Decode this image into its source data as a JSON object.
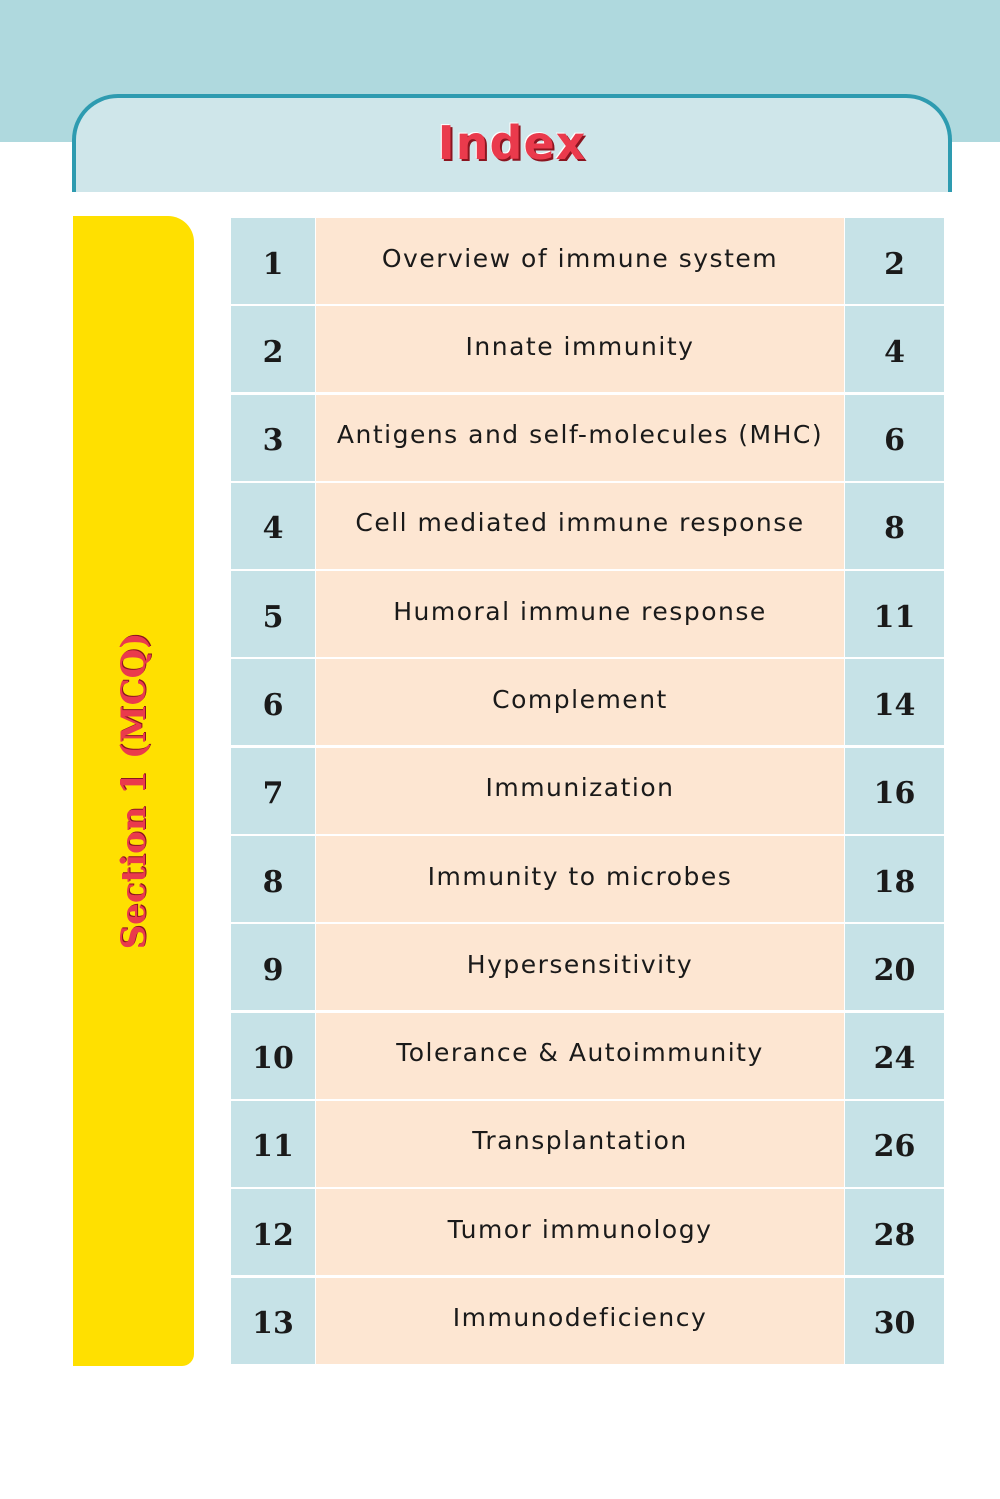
{
  "header": {
    "title": "Index"
  },
  "section": {
    "label": "Section 1 (MCQ)"
  },
  "index": {
    "rows": [
      {
        "num": "1",
        "title": "Overview of immune system",
        "page": "2"
      },
      {
        "num": "2",
        "title": "Innate immunity",
        "page": "4"
      },
      {
        "num": "3",
        "title": "Antigens and self-molecules (MHC)",
        "page": "6"
      },
      {
        "num": "4",
        "title": "Cell mediated immune response",
        "page": "8"
      },
      {
        "num": "5",
        "title": "Humoral immune response",
        "page": "11"
      },
      {
        "num": "6",
        "title": "Complement",
        "page": "14"
      },
      {
        "num": "7",
        "title": "Immunization",
        "page": "16"
      },
      {
        "num": "8",
        "title": "Immunity to microbes",
        "page": "18"
      },
      {
        "num": "9",
        "title": "Hypersensitivity",
        "page": "20"
      },
      {
        "num": "10",
        "title": "Tolerance & Autoimmunity",
        "page": "24"
      },
      {
        "num": "11",
        "title": "Transplantation",
        "page": "26"
      },
      {
        "num": "12",
        "title": "Tumor immunology",
        "page": "28"
      },
      {
        "num": "13",
        "title": "Immunodeficiency",
        "page": "30"
      }
    ]
  },
  "colors": {
    "header_band": "#afd9de",
    "header_border": "#2e9bb0",
    "title_red": "#ea3a4c",
    "section_yellow": "#ffe000",
    "cell_blue": "#c6e2e7",
    "cell_peach": "#fde6d2"
  }
}
